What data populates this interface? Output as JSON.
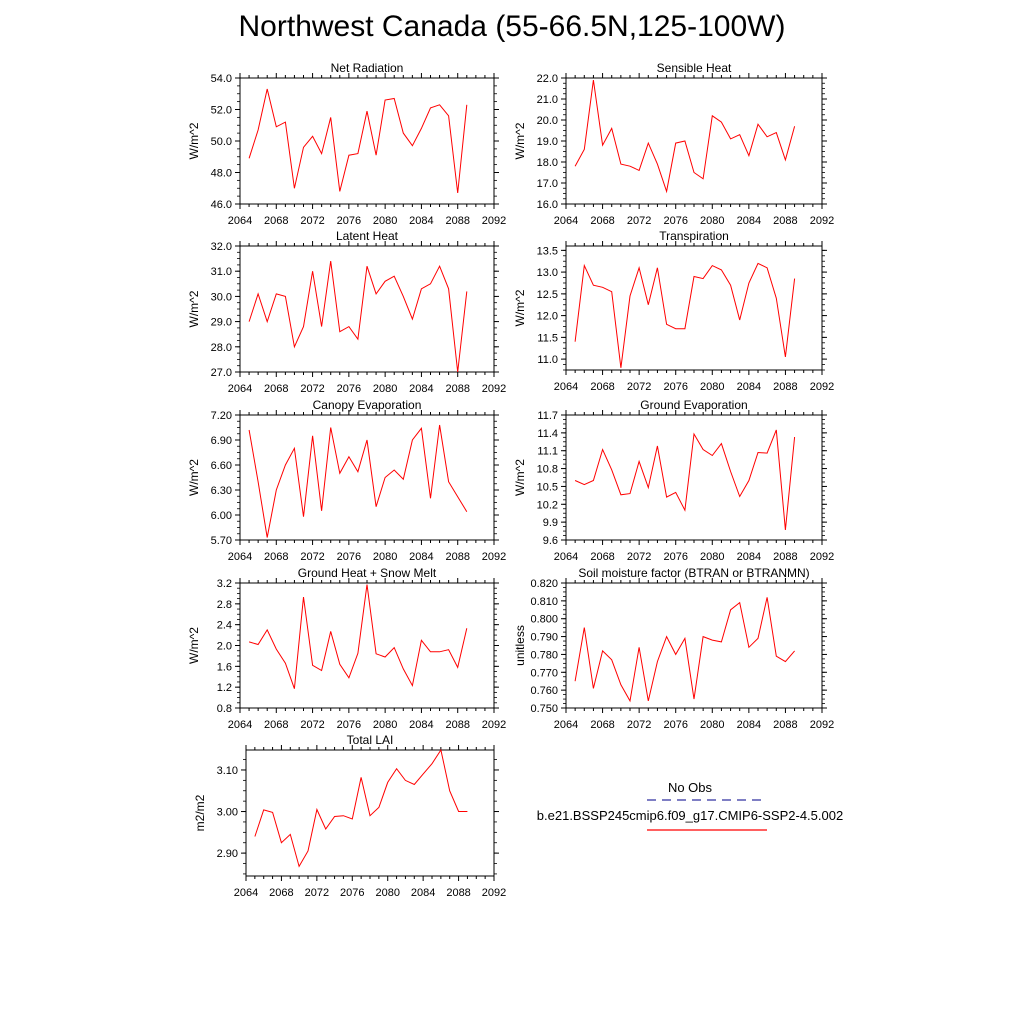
{
  "page_title": "Northwest Canada (55-66.5N,125-100W)",
  "legend": {
    "obs_label": "No Obs",
    "obs_color": "#3030a0",
    "model_label": "b.e21.BSSP245cmip6.f09_g17.CMIP6-SSP2-4.5.002",
    "model_color": "#ff0000"
  },
  "chart_data": [
    {
      "type": "line",
      "title": "Net Radiation",
      "ylabel": "W/m^2",
      "xlim": [
        2064,
        2092
      ],
      "ylim": [
        46.0,
        54.0
      ],
      "xticks": [
        "2064",
        "2068",
        "2072",
        "2076",
        "2080",
        "2084",
        "2088",
        "2092"
      ],
      "yticks": [
        "46.0",
        "48.0",
        "50.0",
        "52.0",
        "54.0"
      ],
      "series": [
        {
          "x": [
            2065,
            2066,
            2067,
            2068,
            2069,
            2070,
            2071,
            2072,
            2073,
            2074,
            2075,
            2076,
            2077,
            2078,
            2079,
            2080,
            2081,
            2082,
            2083,
            2084,
            2085,
            2086,
            2087,
            2088,
            2089
          ],
          "values": [
            48.9,
            50.7,
            53.3,
            50.9,
            51.2,
            47.0,
            49.6,
            50.3,
            49.2,
            51.5,
            46.8,
            49.1,
            49.2,
            51.9,
            49.1,
            52.6,
            52.7,
            50.5,
            49.7,
            50.8,
            52.1,
            52.3,
            51.6,
            46.7,
            52.3
          ]
        }
      ]
    },
    {
      "type": "line",
      "title": "Sensible Heat",
      "ylabel": "W/m^2",
      "xlim": [
        2064,
        2092
      ],
      "ylim": [
        16.0,
        22.0
      ],
      "xticks": [
        "2064",
        "2068",
        "2072",
        "2076",
        "2080",
        "2084",
        "2088",
        "2092"
      ],
      "yticks": [
        "16.0",
        "17.0",
        "18.0",
        "19.0",
        "20.0",
        "21.0",
        "22.0"
      ],
      "series": [
        {
          "x": [
            2065,
            2066,
            2067,
            2068,
            2069,
            2070,
            2071,
            2072,
            2073,
            2074,
            2075,
            2076,
            2077,
            2078,
            2079,
            2080,
            2081,
            2082,
            2083,
            2084,
            2085,
            2086,
            2087,
            2088,
            2089
          ],
          "values": [
            17.8,
            18.6,
            21.9,
            18.8,
            19.6,
            17.9,
            17.8,
            17.6,
            18.9,
            17.9,
            16.6,
            18.9,
            19.0,
            17.5,
            17.2,
            20.2,
            19.9,
            19.1,
            19.3,
            18.3,
            19.8,
            19.2,
            19.4,
            18.1,
            19.7
          ]
        }
      ]
    },
    {
      "type": "line",
      "title": "Latent Heat",
      "ylabel": "W/m^2",
      "xlim": [
        2064,
        2092
      ],
      "ylim": [
        27.0,
        32.0
      ],
      "xticks": [
        "2064",
        "2068",
        "2072",
        "2076",
        "2080",
        "2084",
        "2088",
        "2092"
      ],
      "yticks": [
        "27.0",
        "28.0",
        "29.0",
        "30.0",
        "31.0",
        "32.0"
      ],
      "series": [
        {
          "x": [
            2065,
            2066,
            2067,
            2068,
            2069,
            2070,
            2071,
            2072,
            2073,
            2074,
            2075,
            2076,
            2077,
            2078,
            2079,
            2080,
            2081,
            2082,
            2083,
            2084,
            2085,
            2086,
            2087,
            2088,
            2089
          ],
          "values": [
            29.0,
            30.1,
            29.0,
            30.1,
            30.0,
            28.0,
            28.8,
            31.0,
            28.8,
            31.4,
            28.6,
            28.8,
            28.3,
            31.2,
            30.1,
            30.6,
            30.8,
            30.0,
            29.1,
            30.3,
            30.5,
            31.2,
            30.3,
            27.0,
            30.2
          ]
        }
      ]
    },
    {
      "type": "line",
      "title": "Transpiration",
      "ylabel": "W/m^2",
      "xlim": [
        2064,
        2092
      ],
      "ylim": [
        10.75,
        13.6
      ],
      "xticks": [
        "2064",
        "2068",
        "2072",
        "2076",
        "2080",
        "2084",
        "2088",
        "2092"
      ],
      "yticks": [
        "11.0",
        "11.5",
        "12.0",
        "12.5",
        "13.0",
        "13.5"
      ],
      "ytick_values": [
        11.0,
        11.5,
        12.0,
        12.5,
        13.0,
        13.5
      ],
      "series": [
        {
          "x": [
            2065,
            2066,
            2067,
            2068,
            2069,
            2070,
            2071,
            2072,
            2073,
            2074,
            2075,
            2076,
            2077,
            2078,
            2079,
            2080,
            2081,
            2082,
            2083,
            2084,
            2085,
            2086,
            2087,
            2088,
            2089
          ],
          "values": [
            11.4,
            13.15,
            12.7,
            12.65,
            12.55,
            10.8,
            12.45,
            13.1,
            12.25,
            13.1,
            11.8,
            11.7,
            11.7,
            12.9,
            12.85,
            13.15,
            13.05,
            12.7,
            11.9,
            12.75,
            13.2,
            13.1,
            12.4,
            11.05,
            12.85
          ]
        }
      ]
    },
    {
      "type": "line",
      "title": "Canopy Evaporation",
      "ylabel": "W/m^2",
      "xlim": [
        2064,
        2092
      ],
      "ylim": [
        5.7,
        7.2
      ],
      "xticks": [
        "2064",
        "2068",
        "2072",
        "2076",
        "2080",
        "2084",
        "2088",
        "2092"
      ],
      "yticks": [
        "5.70",
        "6.00",
        "6.30",
        "6.60",
        "6.90",
        "7.20"
      ],
      "series": [
        {
          "x": [
            2065,
            2066,
            2067,
            2068,
            2069,
            2070,
            2071,
            2072,
            2073,
            2074,
            2075,
            2076,
            2077,
            2078,
            2079,
            2080,
            2081,
            2082,
            2083,
            2084,
            2085,
            2086,
            2087,
            2088,
            2089
          ],
          "values": [
            7.02,
            6.4,
            5.73,
            6.3,
            6.6,
            6.8,
            5.98,
            6.95,
            6.05,
            7.05,
            6.5,
            6.7,
            6.52,
            6.9,
            6.1,
            6.45,
            6.54,
            6.43,
            6.9,
            7.04,
            6.2,
            7.08,
            6.4,
            6.22,
            6.04
          ]
        }
      ]
    },
    {
      "type": "line",
      "title": "Ground Evaporation",
      "ylabel": "W/m^2",
      "xlim": [
        2064,
        2092
      ],
      "ylim": [
        9.6,
        11.7
      ],
      "xticks": [
        "2064",
        "2068",
        "2072",
        "2076",
        "2080",
        "2084",
        "2088",
        "2092"
      ],
      "yticks": [
        "9.6",
        "9.9",
        "10.2",
        "10.5",
        "10.8",
        "11.1",
        "11.4",
        "11.7"
      ],
      "series": [
        {
          "x": [
            2065,
            2066,
            2067,
            2068,
            2069,
            2070,
            2071,
            2072,
            2073,
            2074,
            2075,
            2076,
            2077,
            2078,
            2079,
            2080,
            2081,
            2082,
            2083,
            2084,
            2085,
            2086,
            2087,
            2088,
            2089
          ],
          "values": [
            10.6,
            10.53,
            10.6,
            11.12,
            10.78,
            10.36,
            10.38,
            10.92,
            10.48,
            11.18,
            10.32,
            10.4,
            10.1,
            11.38,
            11.12,
            11.02,
            11.22,
            10.75,
            10.33,
            10.6,
            11.07,
            11.06,
            11.45,
            9.77,
            11.33
          ]
        }
      ]
    },
    {
      "type": "line",
      "title": "Ground Heat + Snow Melt",
      "ylabel": "W/m^2",
      "xlim": [
        2064,
        2092
      ],
      "ylim": [
        0.8,
        3.2
      ],
      "xticks": [
        "2064",
        "2068",
        "2072",
        "2076",
        "2080",
        "2084",
        "2088",
        "2092"
      ],
      "yticks": [
        "0.8",
        "1.2",
        "1.6",
        "2.0",
        "2.4",
        "2.8",
        "3.2"
      ],
      "series": [
        {
          "x": [
            2065,
            2066,
            2067,
            2068,
            2069,
            2070,
            2071,
            2072,
            2073,
            2074,
            2075,
            2076,
            2077,
            2078,
            2079,
            2080,
            2081,
            2082,
            2083,
            2084,
            2085,
            2086,
            2087,
            2088,
            2089
          ],
          "values": [
            2.07,
            2.02,
            2.3,
            1.93,
            1.66,
            1.17,
            2.93,
            1.62,
            1.52,
            2.27,
            1.64,
            1.38,
            1.85,
            3.17,
            1.84,
            1.78,
            1.96,
            1.55,
            1.23,
            2.1,
            1.88,
            1.88,
            1.92,
            1.58,
            2.33
          ]
        }
      ]
    },
    {
      "type": "line",
      "title": "Soil moisture factor (BTRAN or BTRANMN)",
      "ylabel": "unitless",
      "xlim": [
        2064,
        2092
      ],
      "ylim": [
        0.75,
        0.82
      ],
      "xticks": [
        "2064",
        "2068",
        "2072",
        "2076",
        "2080",
        "2084",
        "2088",
        "2092"
      ],
      "yticks": [
        "0.750",
        "0.760",
        "0.770",
        "0.780",
        "0.790",
        "0.800",
        "0.810",
        "0.820"
      ],
      "series": [
        {
          "x": [
            2065,
            2066,
            2067,
            2068,
            2069,
            2070,
            2071,
            2072,
            2073,
            2074,
            2075,
            2076,
            2077,
            2078,
            2079,
            2080,
            2081,
            2082,
            2083,
            2084,
            2085,
            2086,
            2087,
            2088,
            2089
          ],
          "values": [
            0.765,
            0.795,
            0.761,
            0.782,
            0.777,
            0.763,
            0.754,
            0.784,
            0.754,
            0.776,
            0.79,
            0.78,
            0.789,
            0.755,
            0.79,
            0.788,
            0.787,
            0.805,
            0.809,
            0.784,
            0.789,
            0.812,
            0.779,
            0.776,
            0.782
          ]
        }
      ]
    },
    {
      "type": "line",
      "title": "Total LAI",
      "ylabel": "m2/m2",
      "xlim": [
        2064,
        2092
      ],
      "ylim": [
        2.845,
        3.148
      ],
      "xticks": [
        "2064",
        "2068",
        "2072",
        "2076",
        "2080",
        "2084",
        "2088",
        "2092"
      ],
      "yticks": [
        "2.90",
        "3.00",
        "3.10"
      ],
      "ytick_values": [
        2.9,
        3.0,
        3.1
      ],
      "series": [
        {
          "x": [
            2065,
            2066,
            2067,
            2068,
            2069,
            2070,
            2071,
            2072,
            2073,
            2074,
            2075,
            2076,
            2077,
            2078,
            2079,
            2080,
            2081,
            2082,
            2083,
            2084,
            2085,
            2086,
            2087,
            2088,
            2089
          ],
          "values": [
            2.94,
            3.004,
            2.998,
            2.925,
            2.945,
            2.868,
            2.905,
            3.005,
            2.958,
            2.988,
            2.99,
            2.982,
            3.082,
            2.99,
            3.01,
            3.07,
            3.103,
            3.075,
            3.065,
            3.09,
            3.115,
            3.148,
            3.05,
            3.0,
            3.0
          ]
        }
      ]
    }
  ]
}
